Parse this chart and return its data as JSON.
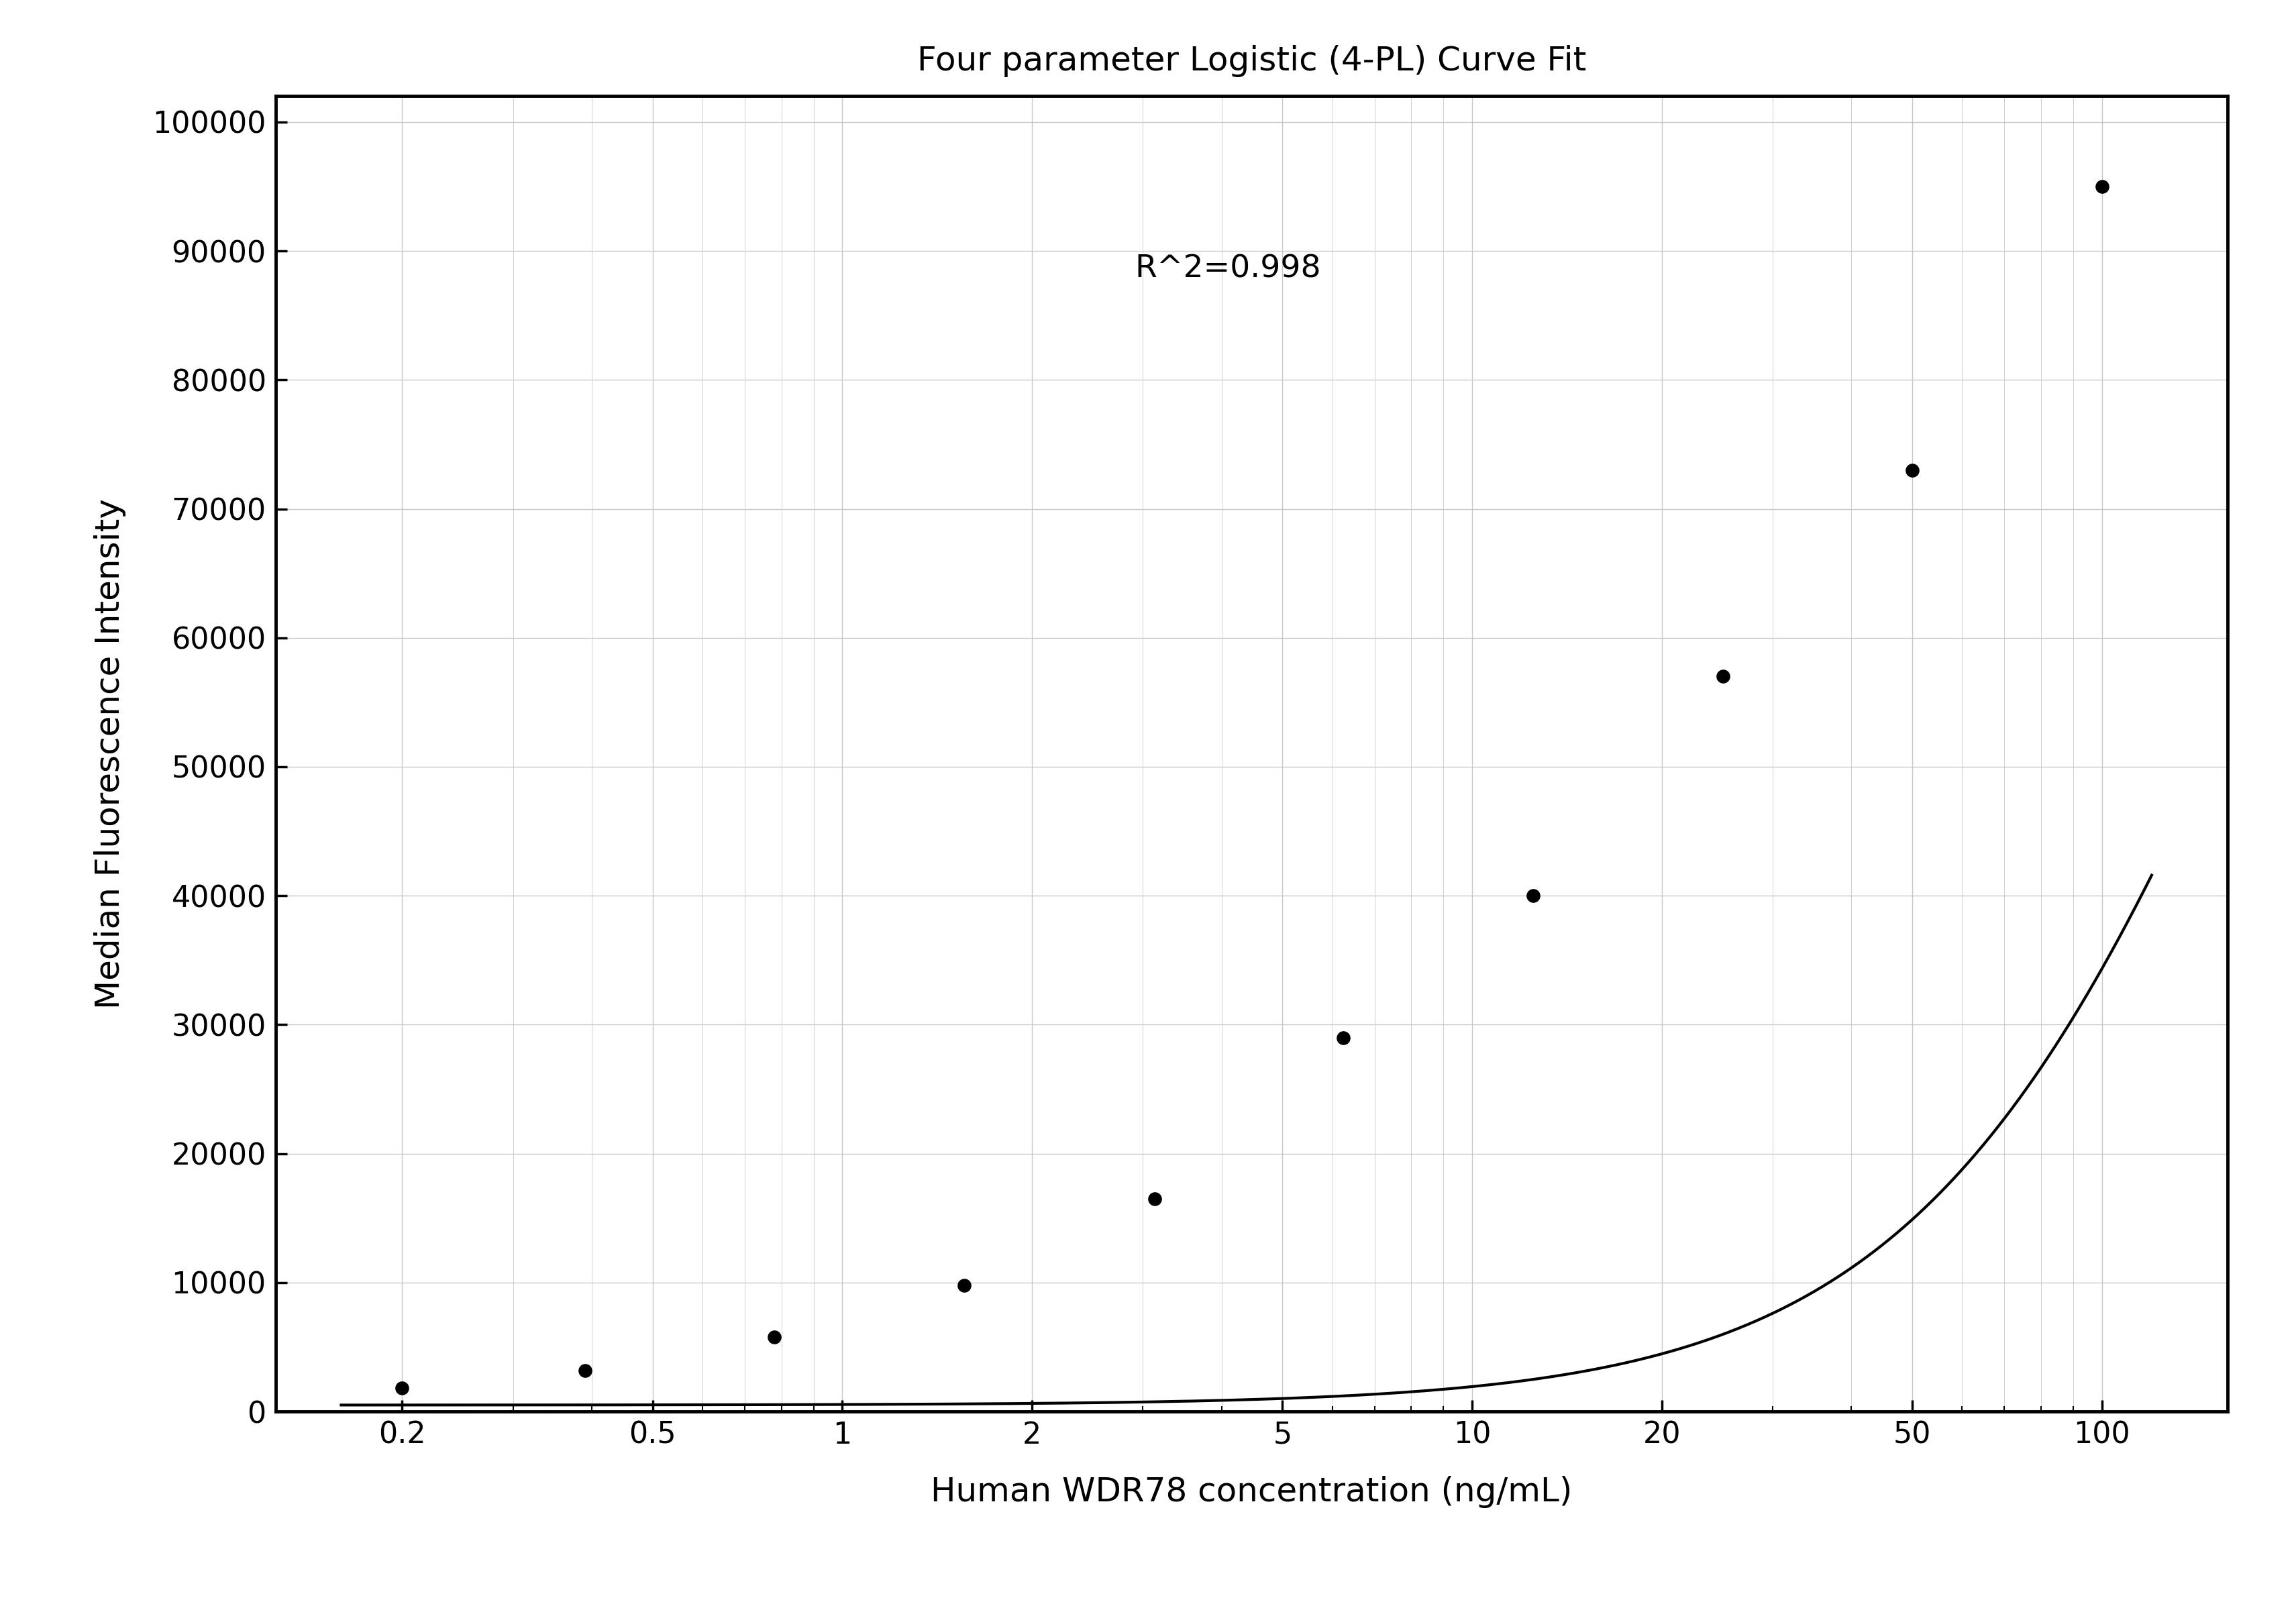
{
  "title": "Four parameter Logistic (4-PL) Curve Fit",
  "xlabel": "Human WDR78 concentration (ng/mL)",
  "ylabel": "Median Fluorescence Intensity",
  "r_squared": "R^2=0.998",
  "data_x": [
    0.2,
    0.39,
    0.78,
    1.56,
    3.13,
    6.25,
    12.5,
    25.0,
    50.0,
    100.0
  ],
  "data_y": [
    1800,
    3200,
    5800,
    9800,
    16500,
    29000,
    40000,
    57000,
    73000,
    95000
  ],
  "xlim_log": [
    -0.9,
    2.2
  ],
  "ylim": [
    0,
    102000
  ],
  "yticks": [
    0,
    10000,
    20000,
    30000,
    40000,
    50000,
    60000,
    70000,
    80000,
    90000,
    100000
  ],
  "xtick_labels": [
    "0.2",
    "0.5",
    "1",
    "2",
    "5",
    "10",
    "20",
    "50",
    "100"
  ],
  "xtick_values": [
    0.2,
    0.5,
    1,
    2,
    5,
    10,
    20,
    50,
    100
  ],
  "background_color": "#ffffff",
  "grid_color": "#c8c8c8",
  "line_color": "#000000",
  "dot_color": "#000000",
  "title_fontsize": 36,
  "label_fontsize": 36,
  "tick_fontsize": 32,
  "annotation_fontsize": 34,
  "dot_size": 220,
  "linewidth": 3.0,
  "spine_linewidth": 3.5
}
